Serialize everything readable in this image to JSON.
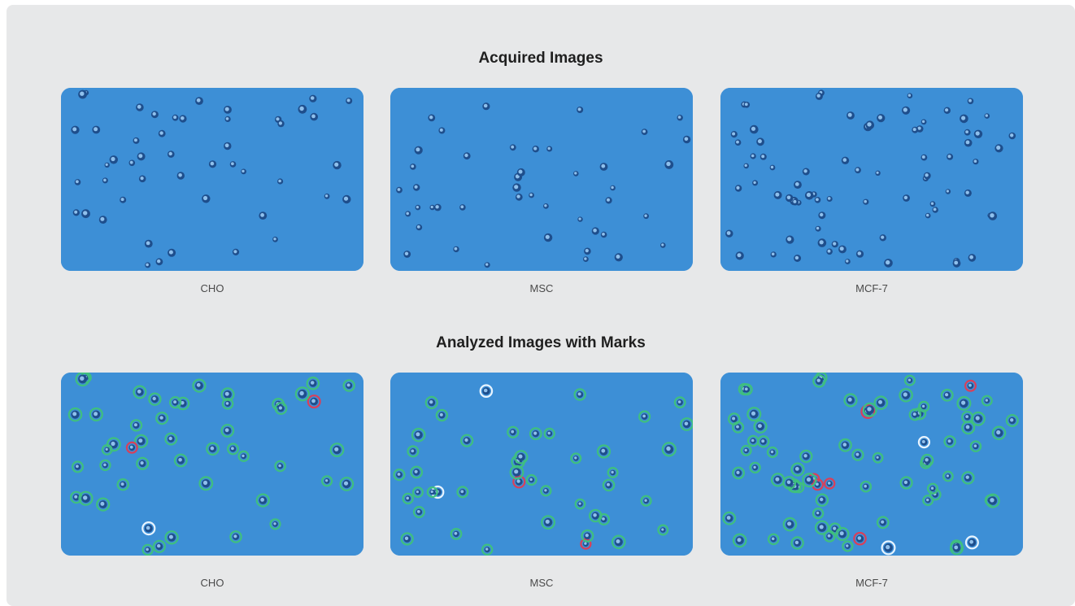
{
  "sections": [
    {
      "title": "Acquired Images",
      "images": [
        {
          "caption": "CHO",
          "marked": false
        },
        {
          "caption": "MSC",
          "marked": false
        },
        {
          "caption": "MCF-7",
          "marked": false
        }
      ]
    },
    {
      "title": "Analyzed Images with Marks",
      "images": [
        {
          "caption": "CHO",
          "marked": true
        },
        {
          "caption": "MSC",
          "marked": true
        },
        {
          "caption": "MCF-7",
          "marked": true
        }
      ]
    }
  ],
  "colors": {
    "panel_background": "#e7e8e9",
    "image_background": "#3d8fd6",
    "cell_dark": "#1e4e8c",
    "cell_core": "#8fc0ec",
    "mark_green": "#3fbf7f",
    "mark_red": "#d8405a",
    "mark_white": "#e8f4ff"
  }
}
